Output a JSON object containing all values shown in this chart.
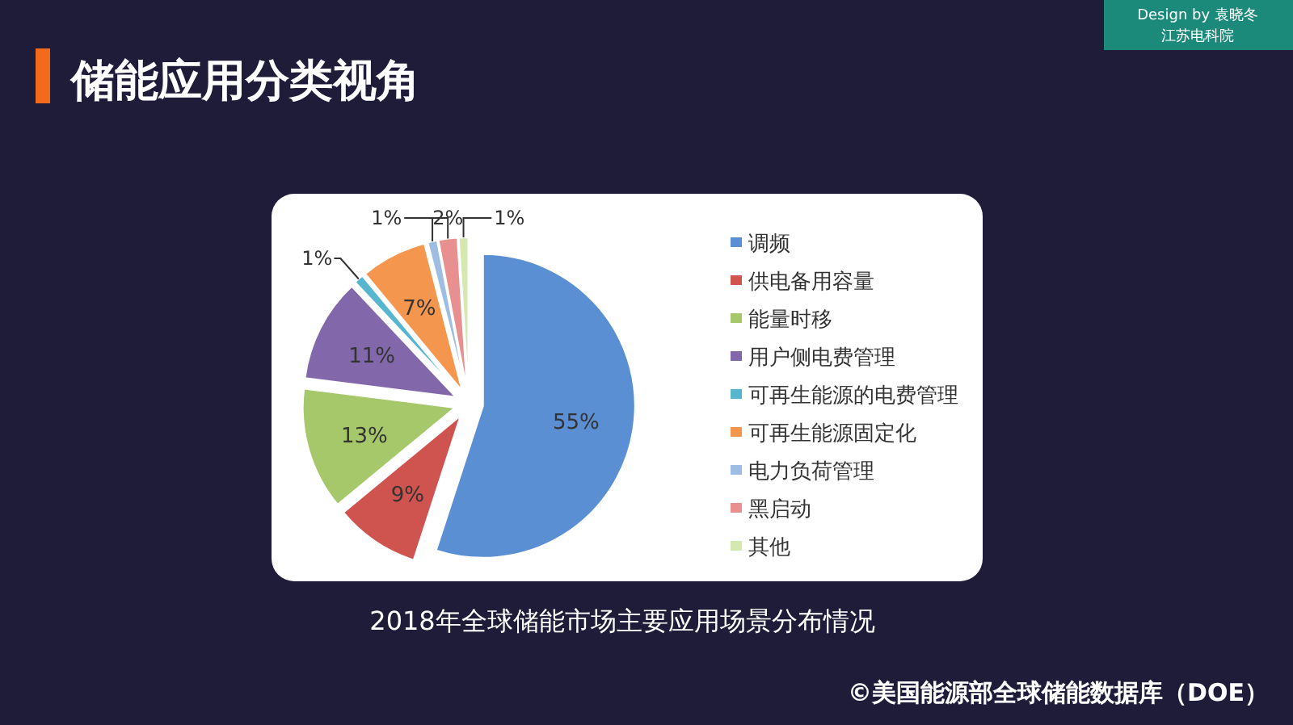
{
  "chart_data": {
    "type": "pie",
    "title": "储能应用分类视角",
    "categories": [
      "调频",
      "供电备用容量",
      "能量时移",
      "用户侧电费管理",
      "可再生能源的电费管理",
      "可再生能源固定化",
      "电力负荷管理",
      "黑启动",
      "其他"
    ],
    "values": [
      55,
      9,
      13,
      11,
      1,
      7,
      1,
      2,
      1
    ],
    "colors": [
      "#5b8fd4",
      "#cf5450",
      "#a6c86a",
      "#8267aa",
      "#56b6d0",
      "#f5964f",
      "#9fbde3",
      "#e8908f",
      "#d5e8b0"
    ],
    "value_labels": [
      "55%",
      "9%",
      "13%",
      "11%",
      "1%",
      "7%",
      "1%",
      "2%",
      "1%"
    ],
    "legend": "right",
    "annotations": [
      "Design by 袁晓冬",
      "江苏电科院",
      "2018年全球储能市场主要应用场景分布情况",
      "©美国能源部全球储能数据库（DOE）"
    ]
  }
}
